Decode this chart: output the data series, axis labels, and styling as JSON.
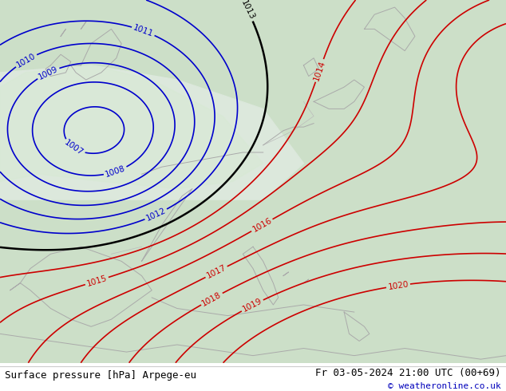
{
  "title_left": "Surface pressure [hPa] Arpege-eu",
  "title_right": "Fr 03-05-2024 21:00 UTC (00+69)",
  "copyright": "© weatheronline.co.uk",
  "map_bg_upper": "#dce8dc",
  "map_bg_lower": "#c8dfc8",
  "land_green": "#b8d8b0",
  "sea_light": "#e0ece0",
  "blue_isobars": [
    1007,
    1008,
    1009,
    1010,
    1011,
    1012
  ],
  "red_isobars": [
    1014,
    1015,
    1016,
    1017,
    1018,
    1019,
    1020
  ],
  "black_isobars": [
    1013
  ],
  "isobar_color_blue": "#0000cc",
  "isobar_color_red": "#cc0000",
  "isobar_color_black": "#000000",
  "title_fontsize": 9,
  "label_fontsize": 7.5,
  "bottom_bar_color": "#ffffff",
  "bottom_text_color": "#000000",
  "copyright_color": "#0000bb",
  "coast_color": "#aaaaaa",
  "country_color": "#888888"
}
